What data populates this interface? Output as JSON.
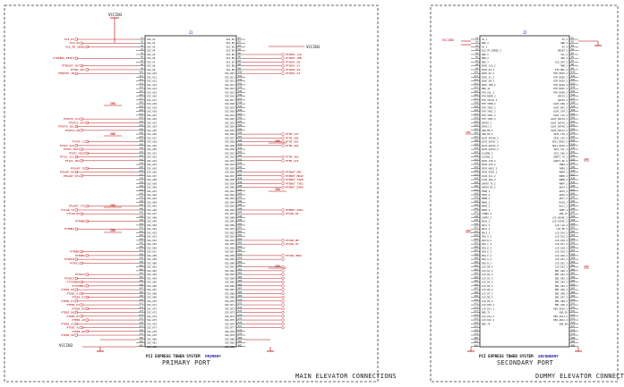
{
  "sheet": {
    "left_caption": "MAIN ELEVATOR CONNECTIONS",
    "right_caption": "DUMMY ELEVATOR CONNECTIONS"
  },
  "primary": {
    "component": "PCI EXPRESS TOWER SYSTEM",
    "refdes": "PRIMARY",
    "port_label": "PRIMARY PORT",
    "power_top": "VCCIN3",
    "power_right": "VCCIN3",
    "power_bottom": "VCCIN3",
    "gnd_label": "GND",
    "left_signals": [
      "ELE_R1",
      "ELE_R3",
      "ELE_PR_SENSE",
      "PTDEBUG_RESET",
      "PTRESET_OUT",
      "PTINT_OUT",
      "PTRESET_IN",
      "PTGPIO_CLK",
      "PTGPIO_DAT",
      "PTGPIO_SEL",
      "PTGPIO_EN",
      "PTSPI_CS",
      "PTSPI_SCK",
      "PTSPI_MOSI",
      "PTSPI_MISO",
      "PTI2C_SCL",
      "PTI2C_SDA",
      "PTUART_TX",
      "PTUART_RX",
      "PTUART_RTS",
      "PTUART_CTS",
      "PTCAN_TX",
      "PTCAN_RX",
      "PTPWM0",
      "PTPWM1",
      "PTPWM2",
      "PTPWM3",
      "PTADC0",
      "PTADC1",
      "PTADC2",
      "PTADC3",
      "PTTIMER0",
      "PTTIMER1",
      "PTEBI_D0",
      "PTEBI_D1",
      "PTEBI_D2",
      "PTEBI_D3",
      "PTEBI_D4",
      "PTEBI_D5",
      "PTEBI_D6",
      "PTEBI_D7",
      "PTEBI_A0",
      "PTEBI_A1",
      "PTEBI_A2",
      "PTEBI_WE",
      "PTEBI_OE"
    ],
    "right_signals": [
      "PTSDHC_CLK",
      "PTSDHC_CMD",
      "PTSDHC_D0",
      "PTSDHC_D1",
      "PTSDHC_D2",
      "PTSDHC_D3",
      "PTFB_CLK",
      "PTFB_AD0",
      "PTFB_AD1",
      "PTFB_AD2",
      "PTFB_AD3",
      "PTFB_ALE",
      "PTENET_MDC",
      "PTENET_MDIO",
      "PTENET_TXD0",
      "PTENET_TXD1",
      "PTENET_RXD0",
      "PTENET_RXD1",
      "PTUSB_DP",
      "PTUSB_DM",
      "PTUSB_ID",
      "PTUSB_VBUS"
    ]
  },
  "secondary": {
    "component": "PCI EXPRESS TOWER SYSTEM",
    "refdes": "SECONDARY",
    "port_label": "SECONDARY PORT",
    "power_label": "VCCIN3",
    "gnd_label": "GND",
    "left_pins": [
      "3V_1",
      "GND_2",
      "5V_3",
      "ELE_PS_SENSE_2",
      "GND_5",
      "PWR_2",
      "GND_7",
      "SDHC_CLK_2",
      "SDHC_D3_2",
      "SDHC_D2_2",
      "SDHC_D1_2",
      "SDHC_D0_2",
      "SDHC_CMD_2",
      "GND_14",
      "ETH_COL_2",
      "ETH_RXER_2",
      "ETH_TXCLK_2",
      "ETH_TXEN_2",
      "ETH_TXD3_2",
      "ETH_TXD2_2",
      "ETH_TXD1_2",
      "ETH_TXD0_2",
      "GPIO0_2",
      "GPIO1_2",
      "USB_DM_2",
      "USB_DP_2",
      "ULPI_DATA0_2",
      "ULPI_DATA1_2",
      "ULPI_DATA2_2",
      "ULPI_DATA3_2",
      "CLKIN0_2",
      "CLKIN1_2",
      "SPI0_CS0_2",
      "SPI0_SCK_2",
      "SPI0_MOSI_2",
      "SPI0_MISO_2",
      "I2C0_SCL_2",
      "I2C0_SDA_2",
      "UART0_TX_2",
      "UART0_RX_2",
      "TMR0_2",
      "TMR1_2",
      "PWM0_2",
      "PWM1_2",
      "PWM2_2",
      "PWM3_2",
      "CANRX_2",
      "CANTX_2",
      "ADC0_2",
      "ADC1_2",
      "ADC2_2",
      "ADC3_2",
      "IRQ_A_2",
      "IRQ_B_2",
      "IRQ_C_2",
      "IRQ_D_2",
      "IRQ_E_2",
      "IRQ_F_2",
      "IRQ_G_2",
      "IRQ_H_2",
      "LCD_D0_2",
      "LCD_D1_2",
      "LCD_D2_2",
      "LCD_D3_2",
      "LCD_D4_2",
      "LCD_D5_2",
      "LCD_D6_2",
      "LCD_D7_2",
      "LCD_D8_2",
      "LCD_D9_2",
      "LCD_D10_2",
      "LCD_D11_2",
      "GND_73",
      "LCD_D12_2",
      "LCD_D13_2",
      "GND_76"
    ],
    "right_pins": [
      "3V_2",
      "GND_3",
      "5V_4",
      "RESET_2",
      "SCL_2",
      "SDA_2",
      "CLK_OUT_2",
      "PWR_2",
      "ETH_MDC_2",
      "ETH_MDIO_2",
      "ETH_RXDV_2",
      "ETH_RXD3_2",
      "ETH_RXD2_2",
      "ETH_RXD1_2",
      "ETH_RXD0_2",
      "GPIO2_2",
      "GPIO3_2",
      "ULPI_DIR_2",
      "ULPI_NXT_2",
      "ULPI_STP_2",
      "ULPI_CLK_2",
      "ULPI_DATA4_2",
      "ULPI_DATA5_2",
      "ULPI_DATA6_2",
      "ULPI_DATA7_2",
      "SPI1_CS0_2",
      "SPI1_SCK_2",
      "SPI1_MOSI_2",
      "SPI1_MISO_2",
      "I2C1_SCL_2",
      "I2C1_SDA_2",
      "UART1_TX_2",
      "UART1_RX_2",
      "TMR2_2",
      "TMR3_2",
      "PWM4_2",
      "PWM5_2",
      "PWM6_2",
      "PWM7_2",
      "ADC4_2",
      "ADC5_2",
      "ADC6_2",
      "ADC7_2",
      "DAC0_2",
      "DAC1_2",
      "VREF_2",
      "GND_47",
      "LCD_HSYNC_2",
      "LCD_VSYNC_2",
      "LCD_CLK_2",
      "LCD_DE_2",
      "LCD_D14_2",
      "LCD_D15_2",
      "LCD_D16_2",
      "LCD_D17_2",
      "LCD_D18_2",
      "LCD_D19_2",
      "LCD_D20_2",
      "LCD_D21_2",
      "LCD_D22_2",
      "LCD_D23_2",
      "EBI_AD0_2",
      "EBI_AD1_2",
      "EBI_AD2_2",
      "EBI_AD3_2",
      "EBI_AD4_2",
      "EBI_AD5_2",
      "EBI_AD6_2",
      "EBI_AD7_2",
      "EBI_AD8_2",
      "EBI_AD9_2",
      "EBI_AD10_2",
      "GND_81",
      "EBI_AD11_2",
      "EBI_AD12_2",
      "GND_84"
    ]
  }
}
